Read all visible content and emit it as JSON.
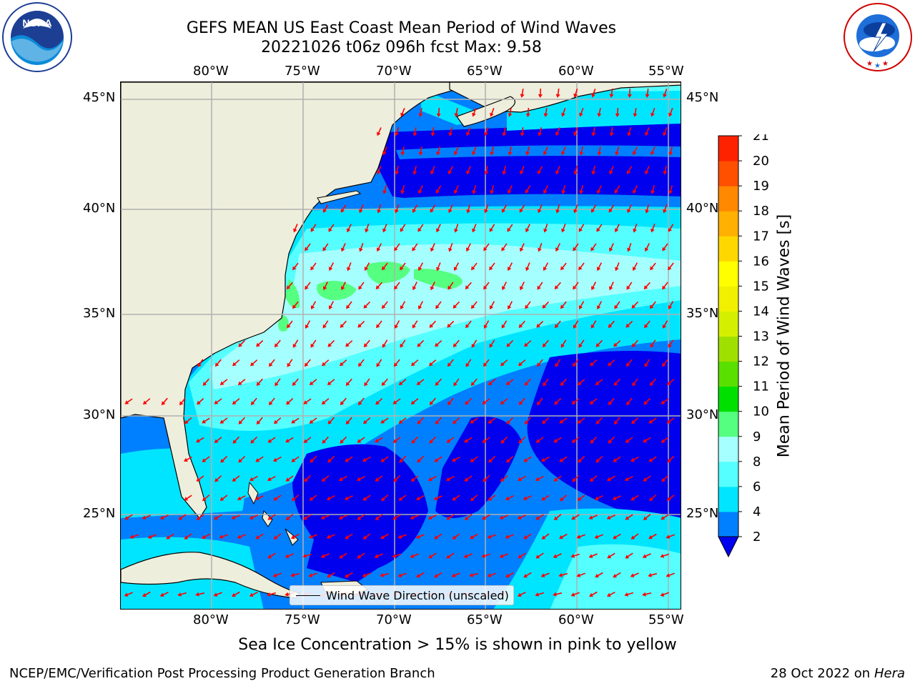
{
  "header": {
    "title_line1": "GEFS MEAN US East Coast Mean Period of Wind Waves",
    "title_line2": "20221026 t06z 096h fcst   Max: 9.58"
  },
  "logos": {
    "left": "NOAA",
    "left_ring_text": "NATIONAL OCEANIC AND ATMOSPHERIC ADMINISTRATION · U.S. DEPARTMENT OF COMMERCE",
    "right_ring_text": "NATIONAL WEATHER SERVICE"
  },
  "map": {
    "lon_ticks": [
      "80°W",
      "75°W",
      "70°W",
      "65°W",
      "60°W",
      "55°W"
    ],
    "lat_ticks": [
      "45°N",
      "40°N",
      "35°N",
      "30°N",
      "25°N"
    ],
    "legend_label": "Wind Wave Direction (unscaled)",
    "colors": {
      "land": "#eeeedc",
      "ocean_lt2": "#0000ee",
      "band_2_4": "#0080ff",
      "band_4_6": "#00e5ff",
      "band_6_8": "#55ffff",
      "band_8_9": "#a6ffff",
      "band_9_10": "#55ff80",
      "arrow": "#ff0000",
      "grid": "#b0b0b0"
    },
    "arrow_direction": "mostly toward the south-southwest, curving west in the south"
  },
  "colorbar": {
    "label": "Mean Period of Wind Waves [s]",
    "ticks": [
      "2",
      "4",
      "6",
      "8",
      "9",
      "10",
      "11",
      "12",
      "13",
      "14",
      "15",
      "16",
      "17",
      "18",
      "19",
      "20",
      "21"
    ],
    "colors": [
      "#0080ff",
      "#00e5ff",
      "#55ffff",
      "#a6ffff",
      "#55ff80",
      "#00e000",
      "#5ae000",
      "#a0e000",
      "#d4f000",
      "#f0f000",
      "#ffff00",
      "#ffd700",
      "#ffb000",
      "#ff8800",
      "#ff5000",
      "#ff2200"
    ],
    "under_color": "#0000ee",
    "extend": "min"
  },
  "footer": {
    "subcaption": "Sea Ice Concentration > 15% is shown in pink to yellow",
    "left": "NCEP/EMC/Verification Post Processing Product Generation Branch",
    "right_date": "28 Oct 2022 on ",
    "right_machine": "Hera"
  }
}
